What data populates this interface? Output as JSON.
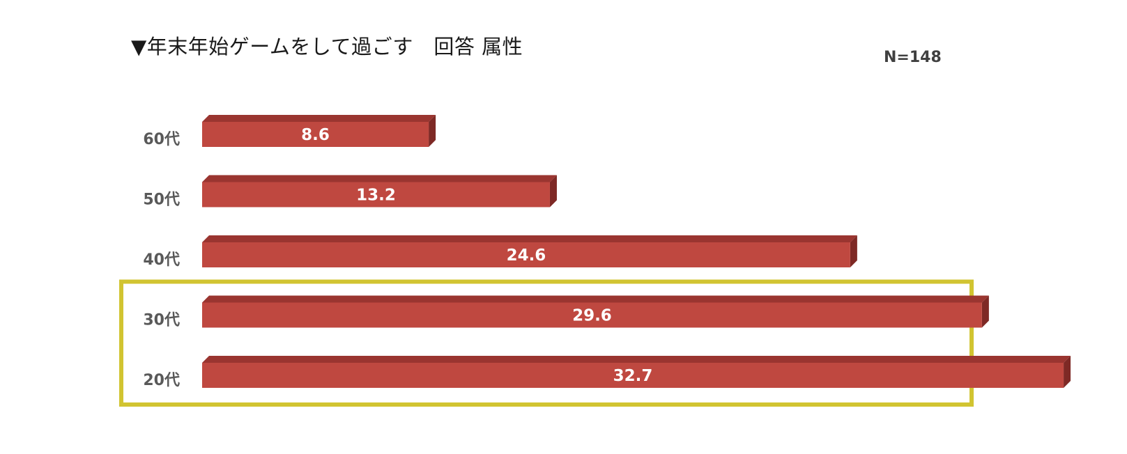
{
  "chart_data": {
    "type": "bar",
    "orientation": "horizontal",
    "title": "▼年末年始ゲームをして過ごす　回答 属性",
    "sample_size": "N=148",
    "categories": [
      "60代",
      "50代",
      "40代",
      "30代",
      "20代"
    ],
    "values": [
      8.6,
      13.2,
      24.6,
      29.6,
      32.7
    ],
    "value_labels": [
      "8.6",
      "13.2",
      "24.6",
      "29.6",
      "32.7"
    ],
    "xlim": [
      0,
      32.7
    ],
    "grid": false,
    "legend": "none",
    "highlighted_categories": [
      "30代",
      "20代"
    ],
    "colors": {
      "bar_front": "#bf4840",
      "bar_top": "#9a3530",
      "bar_side": "#7e2925",
      "highlight_border": "#d1c431",
      "category_text": "#595959",
      "value_text": "#ffffff"
    }
  }
}
